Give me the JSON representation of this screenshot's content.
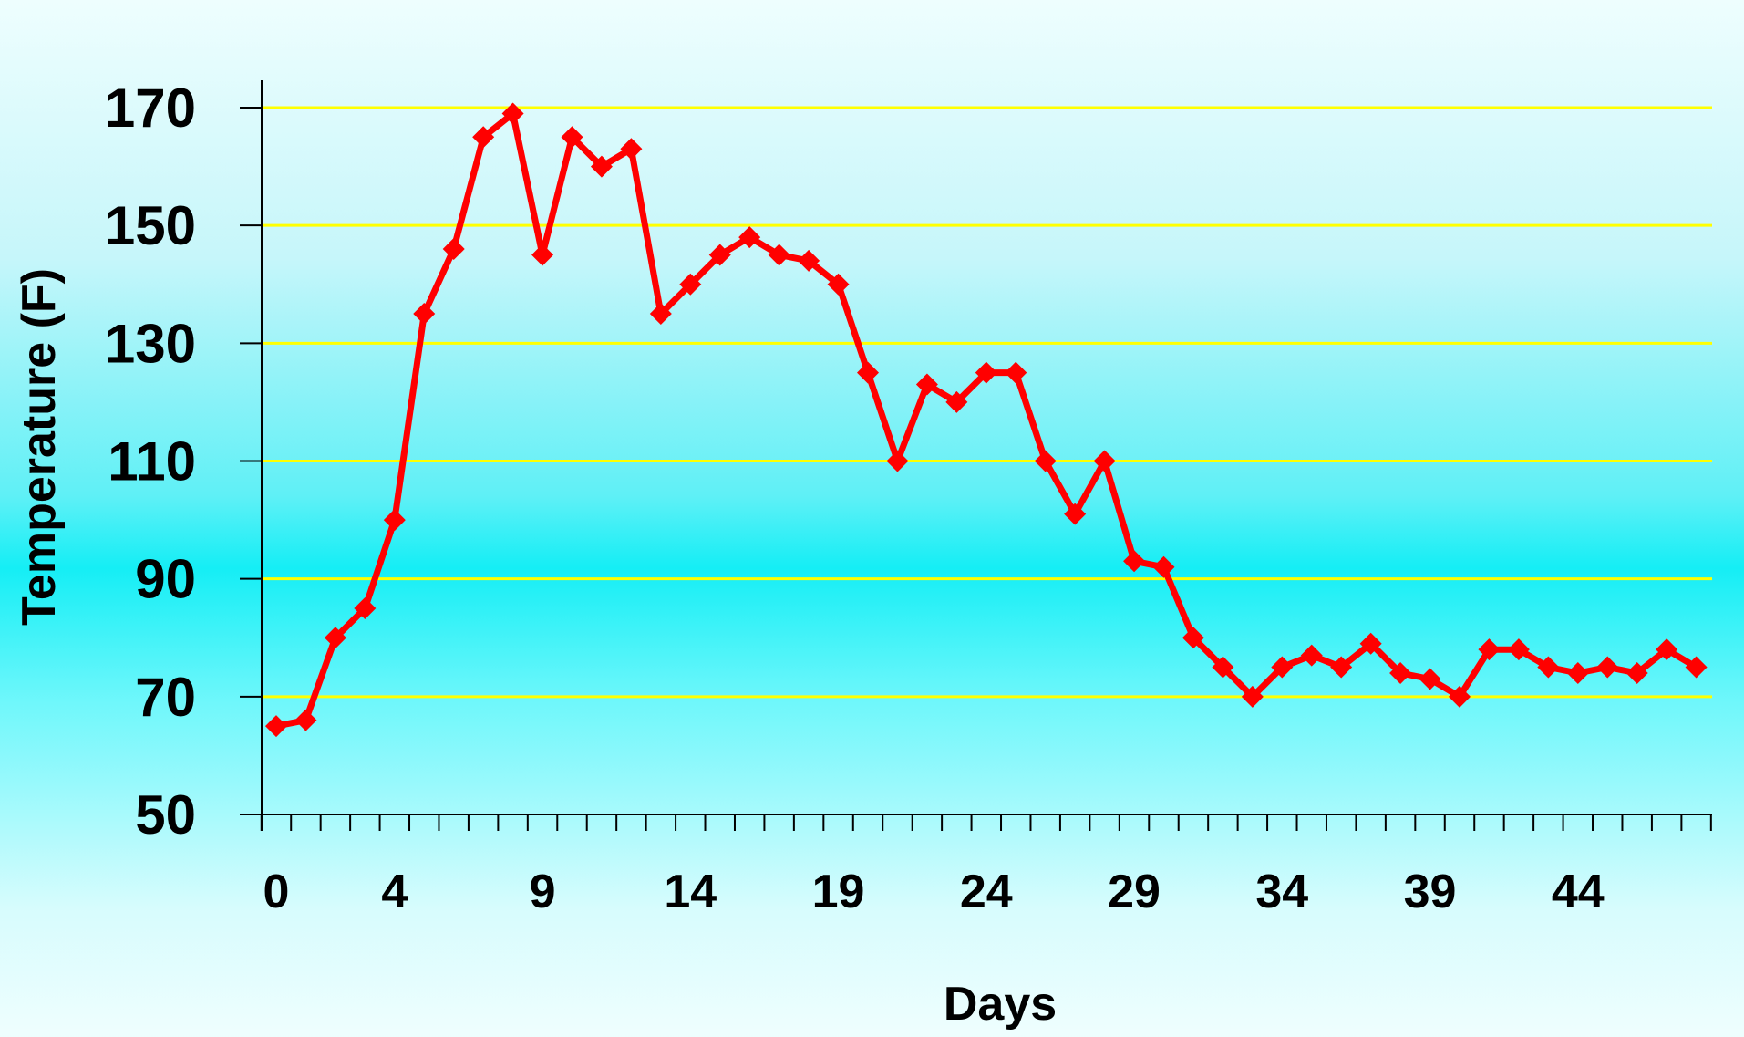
{
  "chart_data": {
    "type": "line",
    "title": "",
    "xlabel": "Days",
    "ylabel": "Temperature (F)",
    "ylim": [
      50,
      170
    ],
    "yticks": [
      50,
      70,
      90,
      110,
      130,
      150,
      170
    ],
    "xlim": [
      0,
      48
    ],
    "xtick_labels": [
      0,
      4,
      9,
      14,
      19,
      24,
      29,
      34,
      39,
      44
    ],
    "grid": "horizontal",
    "legend": "none",
    "colors": {
      "line": "#ff0000",
      "grid": "#ffff00",
      "axis": "#000000"
    },
    "series": [
      {
        "x": [
          0,
          1,
          2,
          3,
          4,
          5,
          6,
          7,
          8,
          9,
          10,
          11,
          12,
          13,
          14,
          15,
          16,
          17,
          18,
          19,
          20,
          21,
          22,
          23,
          24,
          25,
          26,
          27,
          28,
          29,
          30,
          31,
          32,
          33,
          34,
          35,
          36,
          37,
          38,
          39,
          40,
          41,
          42,
          43,
          44,
          45,
          46,
          47,
          48
        ],
        "values": [
          65,
          66,
          80,
          85,
          100,
          135,
          146,
          165,
          169,
          145,
          165,
          160,
          163,
          135,
          140,
          145,
          148,
          145,
          144,
          140,
          125,
          110,
          123,
          120,
          125,
          125,
          110,
          101,
          110,
          93,
          92,
          80,
          75,
          70,
          75,
          77,
          75,
          79,
          74,
          73,
          70,
          78,
          78,
          75,
          74,
          75,
          74,
          78,
          75
        ]
      }
    ]
  }
}
